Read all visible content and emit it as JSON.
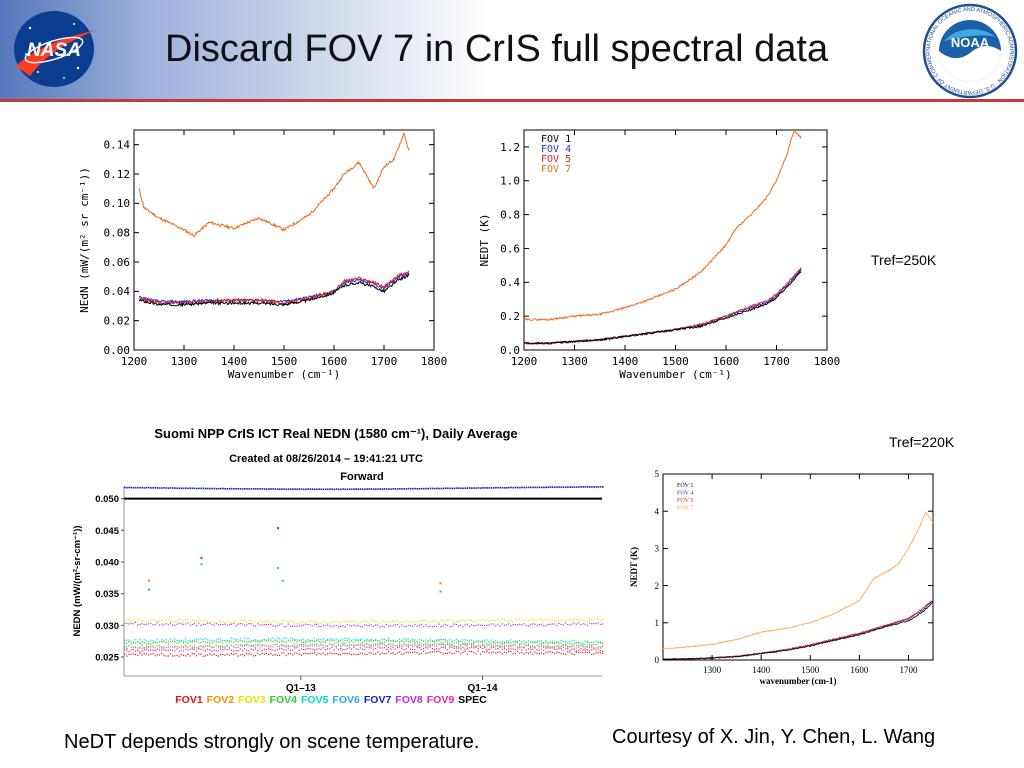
{
  "slide": {
    "title": "Discard FOV 7 in CrIS full spectral data",
    "tref_top": "Tref=250K",
    "tref_bottom": "Tref=220K",
    "caption_left": "NeDT depends strongly on scene temperature.",
    "caption_right": "Courtesy of X. Jin, Y. Chen, L. Wang",
    "logo_left": "NASA",
    "logo_right": "NOAA",
    "noaa_ring_text": "NATIONAL OCEANIC AND ATMOSPHERIC ADMINISTRATION · U.S. DEPARTMENT OF COMMERCE"
  },
  "colors": {
    "fov1": "#000000",
    "fov4": "#2233dd",
    "fov5": "#dd2222",
    "fov7": "#ee6a1c",
    "header_rule": "#c23a3a"
  },
  "chart_data": [
    {
      "id": "nedn",
      "type": "line",
      "title": "",
      "xlabel": "Wavenumber (cm⁻¹)",
      "ylabel": "NEdN (mW/(m² sr cm⁻¹))",
      "xlim": [
        1200,
        1800
      ],
      "ylim": [
        0,
        0.15
      ],
      "xticks": [
        1200,
        1300,
        1400,
        1500,
        1600,
        1700,
        1800
      ],
      "yticks": [
        0.0,
        0.02,
        0.04,
        0.06,
        0.08,
        0.1,
        0.12,
        0.14
      ],
      "ytick_labels": [
        "0.00",
        "0.02",
        "0.04",
        "0.06",
        "0.08",
        "0.10",
        "0.12",
        "0.14"
      ],
      "series": [
        {
          "color": "#ee6a1c",
          "x": [
            1210,
            1220,
            1250,
            1300,
            1320,
            1350,
            1400,
            1450,
            1500,
            1550,
            1600,
            1620,
            1650,
            1680,
            1700,
            1720,
            1740,
            1750
          ],
          "y": [
            0.11,
            0.097,
            0.09,
            0.082,
            0.078,
            0.087,
            0.083,
            0.09,
            0.082,
            0.092,
            0.11,
            0.12,
            0.128,
            0.11,
            0.125,
            0.13,
            0.148,
            0.135
          ]
        },
        {
          "color": "#2233dd",
          "x": [
            1210,
            1250,
            1300,
            1350,
            1400,
            1450,
            1500,
            1550,
            1600,
            1620,
            1650,
            1680,
            1700,
            1730,
            1750
          ],
          "y": [
            0.036,
            0.033,
            0.033,
            0.034,
            0.034,
            0.034,
            0.033,
            0.036,
            0.04,
            0.046,
            0.048,
            0.045,
            0.042,
            0.05,
            0.052
          ]
        },
        {
          "color": "#dd2222",
          "x": [
            1210,
            1250,
            1300,
            1350,
            1400,
            1450,
            1500,
            1550,
            1600,
            1620,
            1650,
            1680,
            1700,
            1730,
            1750
          ],
          "y": [
            0.035,
            0.032,
            0.032,
            0.033,
            0.034,
            0.034,
            0.032,
            0.035,
            0.04,
            0.047,
            0.049,
            0.046,
            0.043,
            0.051,
            0.053
          ]
        },
        {
          "color": "#000000",
          "x": [
            1210,
            1250,
            1300,
            1350,
            1400,
            1450,
            1500,
            1550,
            1600,
            1620,
            1650,
            1680,
            1700,
            1730,
            1750
          ],
          "y": [
            0.034,
            0.031,
            0.031,
            0.032,
            0.032,
            0.032,
            0.031,
            0.034,
            0.039,
            0.044,
            0.046,
            0.043,
            0.04,
            0.048,
            0.051
          ]
        }
      ]
    },
    {
      "id": "nedt-250",
      "type": "line",
      "title": "",
      "xlabel": "Wavenumber (cm⁻¹)",
      "ylabel": "NEDT (K)",
      "xlim": [
        1200,
        1800
      ],
      "ylim": [
        0,
        1.3
      ],
      "xticks": [
        1200,
        1300,
        1400,
        1500,
        1600,
        1700,
        1800
      ],
      "yticks": [
        0.0,
        0.2,
        0.4,
        0.6,
        0.8,
        1.0,
        1.2
      ],
      "ytick_labels": [
        "0.0",
        "0.2",
        "0.4",
        "0.6",
        "0.8",
        "1.0",
        "1.2"
      ],
      "legend": {
        "position": "top-left",
        "entries": [
          {
            "label": "FOV 1",
            "color": "#000000"
          },
          {
            "label": "FOV 4",
            "color": "#2233dd"
          },
          {
            "label": "FOV 5",
            "color": "#dd2222"
          },
          {
            "label": "FOV 7",
            "color": "#ee6a1c"
          }
        ]
      },
      "series": [
        {
          "name": "FOV 7",
          "color": "#ee6a1c",
          "x": [
            1200,
            1250,
            1300,
            1350,
            1400,
            1450,
            1500,
            1550,
            1600,
            1620,
            1650,
            1680,
            1700,
            1720,
            1735,
            1750
          ],
          "y": [
            0.18,
            0.18,
            0.2,
            0.21,
            0.25,
            0.3,
            0.36,
            0.46,
            0.62,
            0.72,
            0.8,
            0.9,
            1.0,
            1.15,
            1.3,
            1.25
          ]
        },
        {
          "name": "FOV 4",
          "color": "#2233dd",
          "x": [
            1200,
            1250,
            1300,
            1350,
            1400,
            1450,
            1500,
            1550,
            1600,
            1650,
            1680,
            1700,
            1720,
            1750
          ],
          "y": [
            0.04,
            0.04,
            0.05,
            0.06,
            0.08,
            0.1,
            0.12,
            0.15,
            0.2,
            0.25,
            0.28,
            0.32,
            0.38,
            0.48
          ]
        },
        {
          "name": "FOV 5",
          "color": "#dd2222",
          "x": [
            1200,
            1250,
            1300,
            1350,
            1400,
            1450,
            1500,
            1550,
            1600,
            1650,
            1680,
            1700,
            1720,
            1750
          ],
          "y": [
            0.04,
            0.04,
            0.05,
            0.06,
            0.08,
            0.1,
            0.12,
            0.15,
            0.2,
            0.26,
            0.29,
            0.33,
            0.39,
            0.49
          ]
        },
        {
          "name": "FOV 1",
          "color": "#000000",
          "x": [
            1200,
            1250,
            1300,
            1350,
            1400,
            1450,
            1500,
            1550,
            1600,
            1650,
            1680,
            1700,
            1720,
            1750
          ],
          "y": [
            0.04,
            0.04,
            0.05,
            0.06,
            0.08,
            0.1,
            0.12,
            0.14,
            0.19,
            0.24,
            0.27,
            0.31,
            0.37,
            0.47
          ]
        }
      ]
    },
    {
      "id": "ict-nedn",
      "type": "scatter",
      "title": "Suomi NPP CrIS ICT Real NEDN (1580 cm⁻¹), Daily Average",
      "subtitle": "Created at 08/26/2014 – 19:41:21 UTC",
      "subtitle2": "Forward",
      "ylabel": "NEDN (mW/(m²-sr-cm⁻¹))",
      "xticks": [
        "Q1–13",
        "Q1–14"
      ],
      "ylim": [
        0.022,
        0.052
      ],
      "yticks": [
        0.025,
        0.03,
        0.035,
        0.04,
        0.045,
        0.05
      ],
      "ytick_labels": [
        "0.025",
        "0.030",
        "0.035",
        "0.040",
        "0.045",
        "0.050"
      ],
      "spec_value": 0.05,
      "legend": [
        {
          "label": "FOV1",
          "color": "#ee1111"
        },
        {
          "label": "FOV2",
          "color": "#ff8c00"
        },
        {
          "label": "FOV3",
          "color": "#e6e600"
        },
        {
          "label": "FOV4",
          "color": "#33cc33"
        },
        {
          "label": "FOV5",
          "color": "#00e0c0"
        },
        {
          "label": "FOV6",
          "color": "#22aaff"
        },
        {
          "label": "FOV7",
          "color": "#1122cc"
        },
        {
          "label": "FOV8",
          "color": "#bb33dd"
        },
        {
          "label": "FOV9",
          "color": "#ee22aa"
        },
        {
          "label": "SPEC",
          "color": "#000000"
        }
      ],
      "series": [
        {
          "name": "FOV7",
          "color": "#1122cc",
          "level": 0.0518
        },
        {
          "name": "FOV3",
          "color": "#e6e600",
          "level": 0.0308
        },
        {
          "name": "FOV8",
          "color": "#bb33dd",
          "level": 0.0302
        },
        {
          "name": "FOV5",
          "color": "#00e0c0",
          "level": 0.0277
        },
        {
          "name": "FOV4",
          "color": "#33cc33",
          "level": 0.0274
        },
        {
          "name": "FOV6",
          "color": "#22aaff",
          "level": 0.0268
        },
        {
          "name": "FOV9",
          "color": "#ee22aa",
          "level": 0.0263
        },
        {
          "name": "FOV1",
          "color": "#ee1111",
          "level": 0.0256
        },
        {
          "name": "FOV2",
          "color": "#ff8c00",
          "level": 0.0268
        }
      ],
      "spikes": [
        {
          "t": 0.05,
          "y": 0.0372,
          "color": "#ff8c00"
        },
        {
          "t": 0.05,
          "y": 0.0358,
          "color": "#22aaff"
        },
        {
          "t": 0.16,
          "y": 0.0408,
          "color": "#ee1111"
        },
        {
          "t": 0.16,
          "y": 0.0398,
          "color": "#00e0c0"
        },
        {
          "t": 0.32,
          "y": 0.0455,
          "color": "#ee1111"
        },
        {
          "t": 0.32,
          "y": 0.0392,
          "color": "#00e0c0"
        },
        {
          "t": 0.33,
          "y": 0.0372,
          "color": "#22aaff"
        },
        {
          "t": 0.66,
          "y": 0.0368,
          "color": "#ff8c00"
        },
        {
          "t": 0.66,
          "y": 0.0355,
          "color": "#22aaff"
        }
      ]
    },
    {
      "id": "nedt-220",
      "type": "line",
      "title": "",
      "xlabel": "wavenumber (cm-1)",
      "ylabel": "NEDT (K)",
      "xlim": [
        1200,
        1750
      ],
      "ylim": [
        0,
        5
      ],
      "xticks": [
        1300,
        1400,
        1500,
        1600,
        1700
      ],
      "yticks": [
        0,
        1,
        2,
        3,
        4,
        5
      ],
      "ytick_labels": [
        "0",
        "1",
        "2",
        "3",
        "4",
        "5"
      ],
      "legend": {
        "position": "top-left",
        "entries": [
          {
            "label": "FOV 1",
            "color": "#000000"
          },
          {
            "label": "FOV 4",
            "color": "#2233dd"
          },
          {
            "label": "FOV 5",
            "color": "#dd2222"
          },
          {
            "label": "FOV 7",
            "color": "#ffa040"
          }
        ]
      },
      "series": [
        {
          "name": "FOV 7",
          "color": "#ffa040",
          "x": [
            1200,
            1250,
            1300,
            1350,
            1400,
            1450,
            1500,
            1550,
            1600,
            1630,
            1660,
            1680,
            1700,
            1720,
            1735,
            1750
          ],
          "y": [
            0.3,
            0.35,
            0.42,
            0.55,
            0.75,
            0.85,
            1.0,
            1.25,
            1.6,
            2.2,
            2.4,
            2.6,
            3.0,
            3.5,
            3.98,
            3.7
          ]
        },
        {
          "name": "FOV 4",
          "color": "#2233dd",
          "x": [
            1200,
            1250,
            1300,
            1350,
            1400,
            1450,
            1500,
            1550,
            1600,
            1650,
            1700,
            1730,
            1750
          ],
          "y": [
            0.02,
            0.03,
            0.06,
            0.1,
            0.18,
            0.28,
            0.4,
            0.55,
            0.7,
            0.9,
            1.1,
            1.35,
            1.6
          ]
        },
        {
          "name": "FOV 5",
          "color": "#dd2222",
          "x": [
            1200,
            1250,
            1300,
            1350,
            1400,
            1450,
            1500,
            1550,
            1600,
            1650,
            1700,
            1730,
            1750
          ],
          "y": [
            0.02,
            0.03,
            0.06,
            0.1,
            0.18,
            0.28,
            0.41,
            0.57,
            0.72,
            0.92,
            1.12,
            1.4,
            1.62
          ]
        },
        {
          "name": "FOV 1",
          "color": "#000000",
          "x": [
            1200,
            1250,
            1300,
            1350,
            1400,
            1450,
            1500,
            1550,
            1600,
            1650,
            1700,
            1730,
            1750
          ],
          "y": [
            0.02,
            0.03,
            0.05,
            0.09,
            0.17,
            0.26,
            0.38,
            0.53,
            0.68,
            0.88,
            1.05,
            1.3,
            1.55
          ]
        }
      ]
    }
  ]
}
